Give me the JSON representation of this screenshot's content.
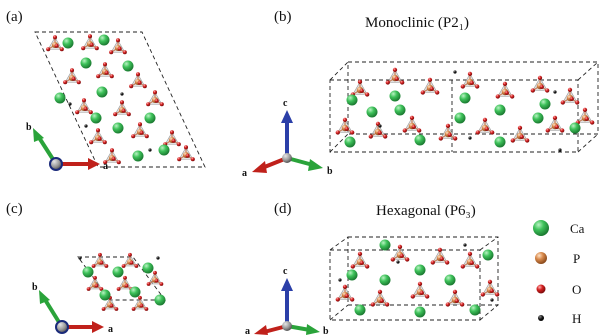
{
  "panels": {
    "a": {
      "label": "(a)"
    },
    "b": {
      "label": "(b)",
      "title": "Monoclinic (P2₁)"
    },
    "c": {
      "label": "(c)"
    },
    "d": {
      "label": "(d)",
      "title": "Hexagonal (P6₃)"
    }
  },
  "axes": {
    "a": "a",
    "b": "b",
    "c": "c"
  },
  "axis_colors": {
    "a": "#c0211b",
    "b": "#2aa33a",
    "c": "#2b3fa8"
  },
  "legend": [
    {
      "symbol": "Ca",
      "color": "#3ec25a",
      "size": "large"
    },
    {
      "symbol": "P",
      "color": "#d98a4c",
      "size": "medium"
    },
    {
      "symbol": "O",
      "color": "#d42020",
      "size": "small"
    },
    {
      "symbol": "H",
      "color": "#111111",
      "size": "tiny"
    }
  ]
}
